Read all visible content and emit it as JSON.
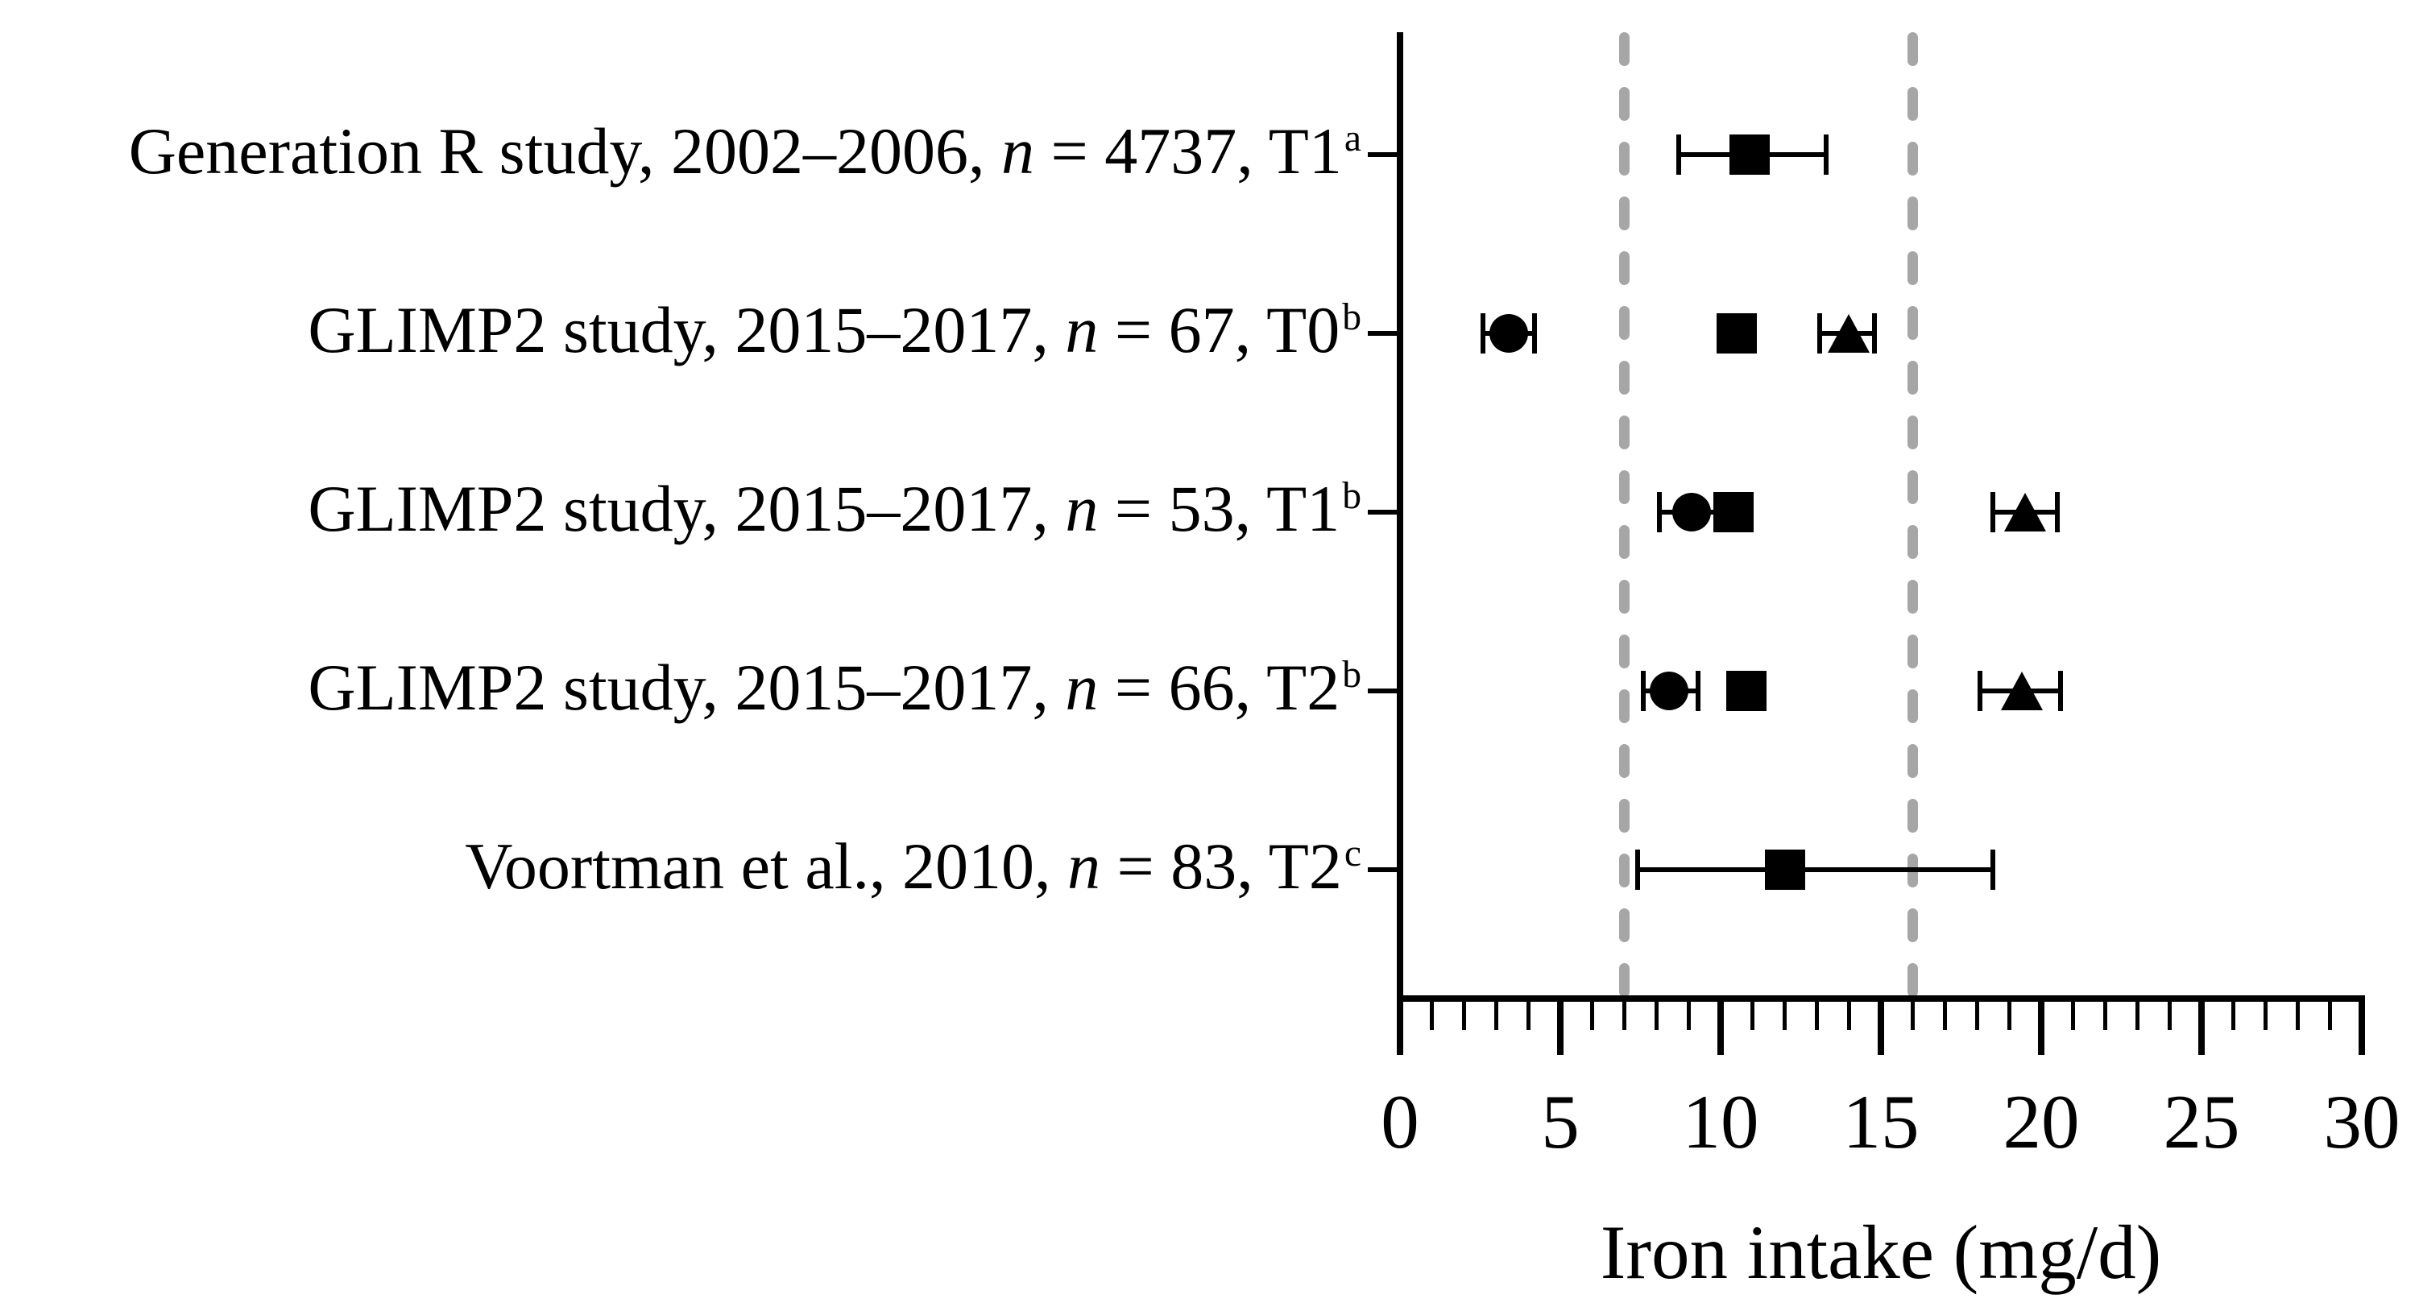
{
  "figure": {
    "background": "#ffffff",
    "axis_color": "#000000",
    "marker_color": "#000000",
    "reference_line_color": "#a6a6a6"
  },
  "chart_data": {
    "type": "scatter",
    "orientation": "horizontal-forest-plot",
    "title": "",
    "xlabel": "Iron intake (mg/d)",
    "ylabel": "",
    "xlim": [
      0,
      30
    ],
    "x_major_ticks": [
      0,
      5,
      10,
      15,
      20,
      25,
      30
    ],
    "x_tick_labels": [
      "0",
      "5",
      "10",
      "15",
      "20",
      "25",
      "30"
    ],
    "x_minor_tick_step": 1,
    "grid": false,
    "legend": "none",
    "reference_lines_x": [
      7,
      16
    ],
    "reference_line_style": "dashed-gray-vertical",
    "rows": [
      {
        "label_pre": "Generation R study, 2002–2006, ",
        "label_n": "n",
        "label_post": " = 4737, T1",
        "label_sup": "a",
        "points": [
          {
            "marker": "square",
            "x": 10.9,
            "lo": 8.7,
            "hi": 13.3
          }
        ]
      },
      {
        "label_pre": "GLIMP2 study, 2015–2017, ",
        "label_n": "n",
        "label_post": " = 67, T0",
        "label_sup": "b",
        "points": [
          {
            "marker": "circle",
            "x": 3.4,
            "lo": 2.6,
            "hi": 4.2
          },
          {
            "marker": "square",
            "x": 10.5
          },
          {
            "marker": "triangle",
            "x": 14.0,
            "lo": 13.1,
            "hi": 14.8
          }
        ]
      },
      {
        "label_pre": "GLIMP2 study, 2015–2017, ",
        "label_n": "n",
        "label_post": " = 53, T1",
        "label_sup": "b",
        "points": [
          {
            "marker": "circle",
            "x": 9.1,
            "lo": 8.1,
            "hi": 10.2
          },
          {
            "marker": "square",
            "x": 10.4
          },
          {
            "marker": "triangle",
            "x": 19.5,
            "lo": 18.5,
            "hi": 20.5
          }
        ]
      },
      {
        "label_pre": "GLIMP2 study, 2015–2017, ",
        "label_n": "n",
        "label_post": " = 66, T2",
        "label_sup": "b",
        "points": [
          {
            "marker": "circle",
            "x": 8.4,
            "lo": 7.6,
            "hi": 9.3
          },
          {
            "marker": "square",
            "x": 10.8
          },
          {
            "marker": "triangle",
            "x": 19.4,
            "lo": 18.1,
            "hi": 20.6
          }
        ]
      },
      {
        "label_pre": "Voortman et al., 2010, ",
        "label_n": "n",
        "label_post": " = 83, T2",
        "label_sup": "c",
        "points": [
          {
            "marker": "square",
            "x": 12.0,
            "lo": 7.4,
            "hi": 18.5
          }
        ]
      }
    ]
  }
}
